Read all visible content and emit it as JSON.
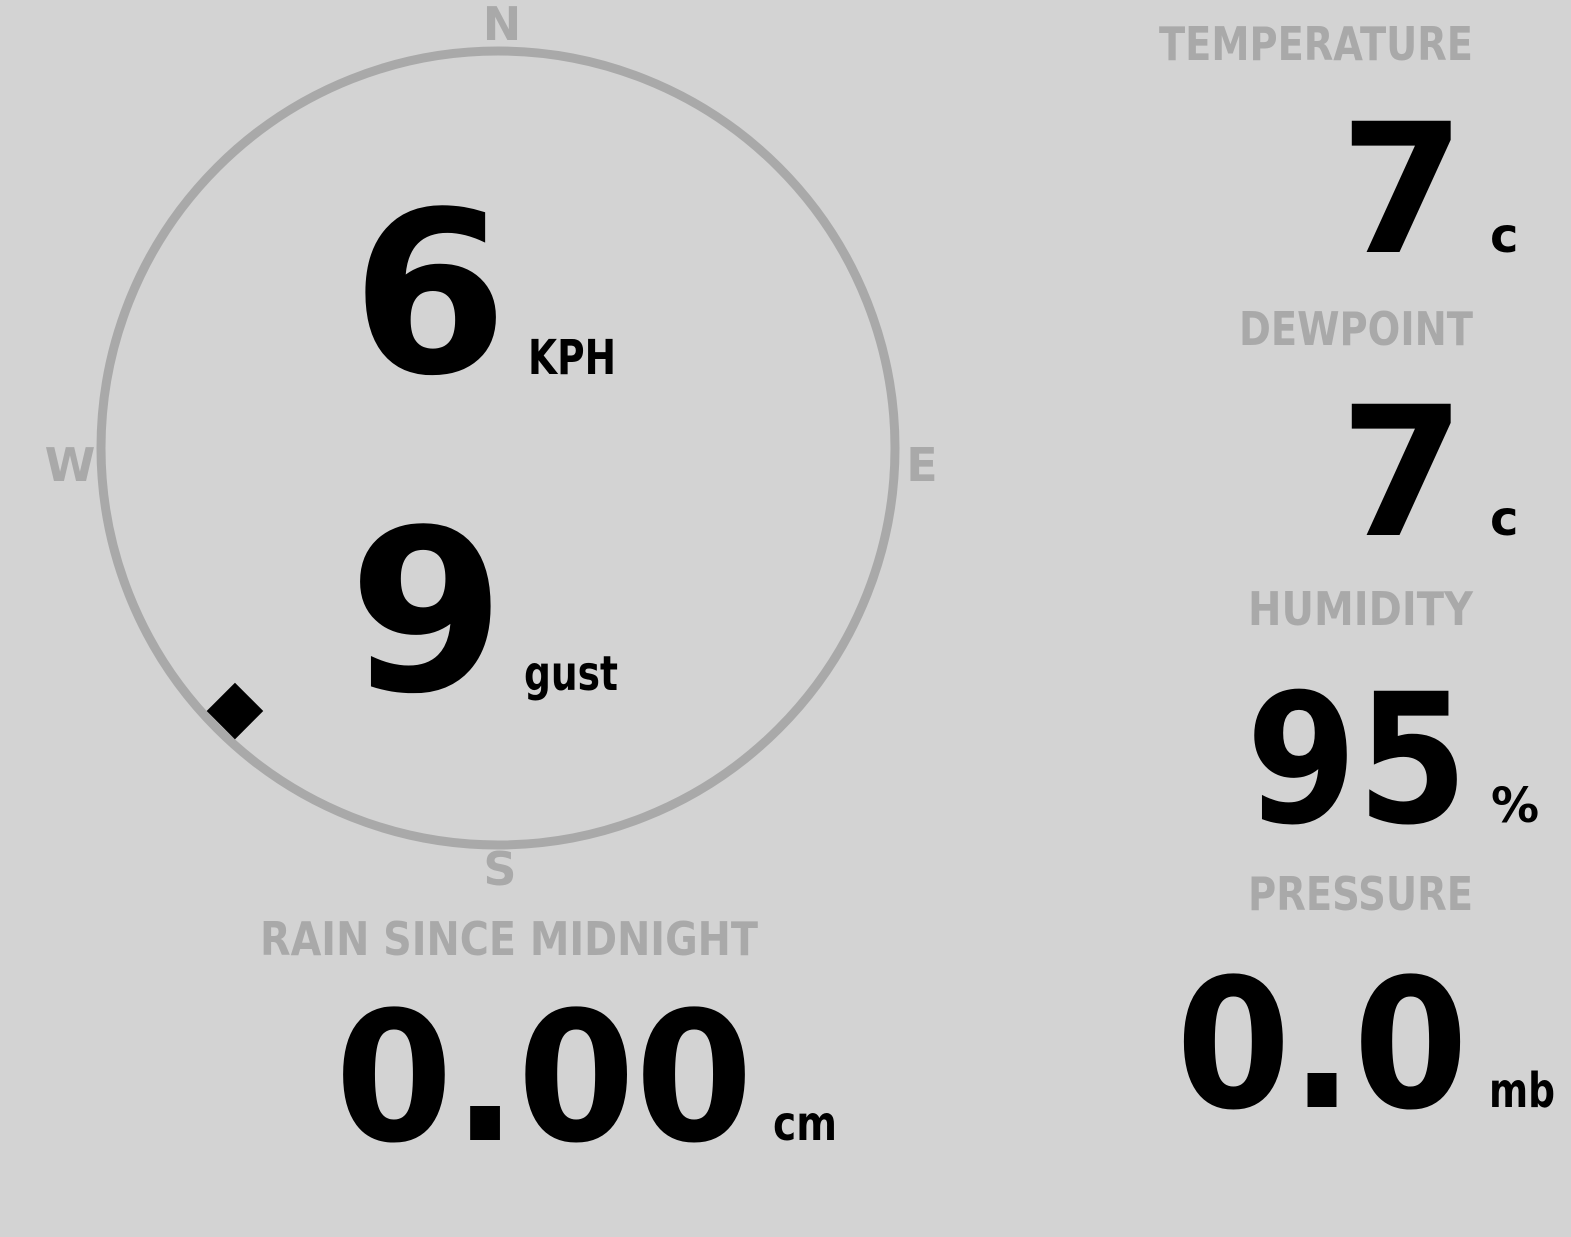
{
  "colors": {
    "background": "#d3d3d3",
    "label": "#a9a9a9",
    "value": "#000000",
    "dial": "#a9a9a9"
  },
  "wind": {
    "compass": {
      "n": "N",
      "e": "E",
      "s": "S",
      "w": "W"
    },
    "direction_deg": 225,
    "speed": "6",
    "speed_unit": "KPH",
    "gust": "9",
    "gust_unit": "gust",
    "marker_icon": "diamond-icon"
  },
  "temperature": {
    "label": "TEMPERATURE",
    "value": "7",
    "unit": "c"
  },
  "dewpoint": {
    "label": "DEWPOINT",
    "value": "7",
    "unit": "c"
  },
  "humidity": {
    "label": "HUMIDITY",
    "value": "95",
    "unit": "%"
  },
  "pressure": {
    "label": "PRESSURE",
    "value": "0.0",
    "unit": "mb"
  },
  "rain": {
    "label": "RAIN SINCE MIDNIGHT",
    "value": "0.00",
    "unit": "cm"
  }
}
